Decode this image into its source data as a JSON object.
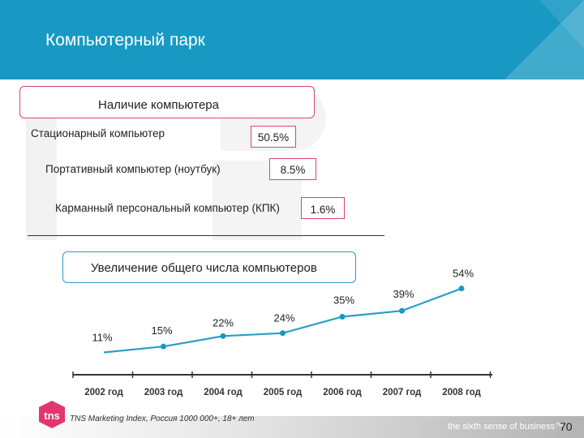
{
  "header": {
    "title": "Компьютерный парк"
  },
  "ownership": {
    "title": "Наличие компьютера",
    "items": [
      {
        "label": "Стационарный компьютер",
        "value": "50.5%"
      },
      {
        "label": "Портативный компьютер (ноутбук)",
        "value": "8.5%"
      },
      {
        "label": "Карманный персональный компьютер (КПК)",
        "value": "1.6%"
      }
    ]
  },
  "growth": {
    "title": "Увеличение общего числа компьютеров"
  },
  "chart_data": {
    "type": "line",
    "categories": [
      "2002 год",
      "2003 год",
      "2004 год",
      "2005 год",
      "2006 год",
      "2007 год",
      "2008 год"
    ],
    "values": [
      11,
      15,
      22,
      24,
      35,
      39,
      54
    ],
    "value_labels": [
      "11%",
      "15%",
      "22%",
      "24%",
      "35%",
      "39%",
      "54%"
    ],
    "ylim": [
      8,
      56
    ],
    "grid": false,
    "line_color": "#2a9ec9",
    "marker_color": "#1899c4",
    "axis_color": "#333333"
  },
  "footer": {
    "source": "TNS Marketing Index, Россия 1000 000+, 18+ лет",
    "tagline": "the sixth sense of business™",
    "page_number": "70",
    "logo_text": "tns"
  },
  "colors": {
    "header": "#1899c4",
    "accent_pink": "#d9437a",
    "accent_blue": "#2a9ec9",
    "logo": "#e3366e"
  }
}
